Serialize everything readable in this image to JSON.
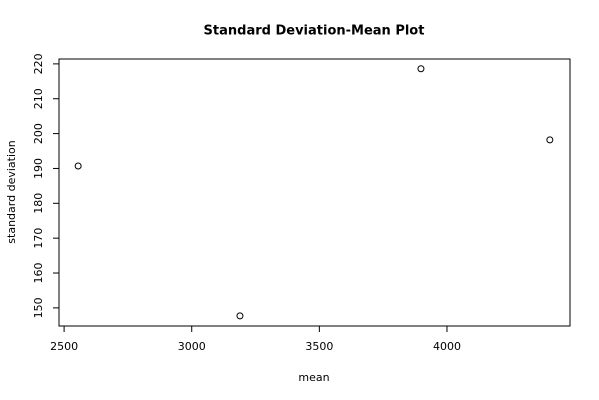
{
  "chart_data": {
    "type": "scatter",
    "title": "Standard Deviation-Mean Plot",
    "x_label": "mean",
    "y_label": "standard deviation",
    "x": [
      2555,
      3189,
      3898,
      4403
    ],
    "values": [
      190.7,
      147.7,
      218.6,
      198.2
    ],
    "color": "#000000",
    "xlim": [
      2480,
      4482
    ],
    "ylim": [
      144.8,
      221.4
    ],
    "xticks": [
      2500,
      3000,
      3500,
      4000
    ],
    "yticks": [
      150,
      160,
      170,
      180,
      190,
      200,
      210,
      220
    ]
  }
}
